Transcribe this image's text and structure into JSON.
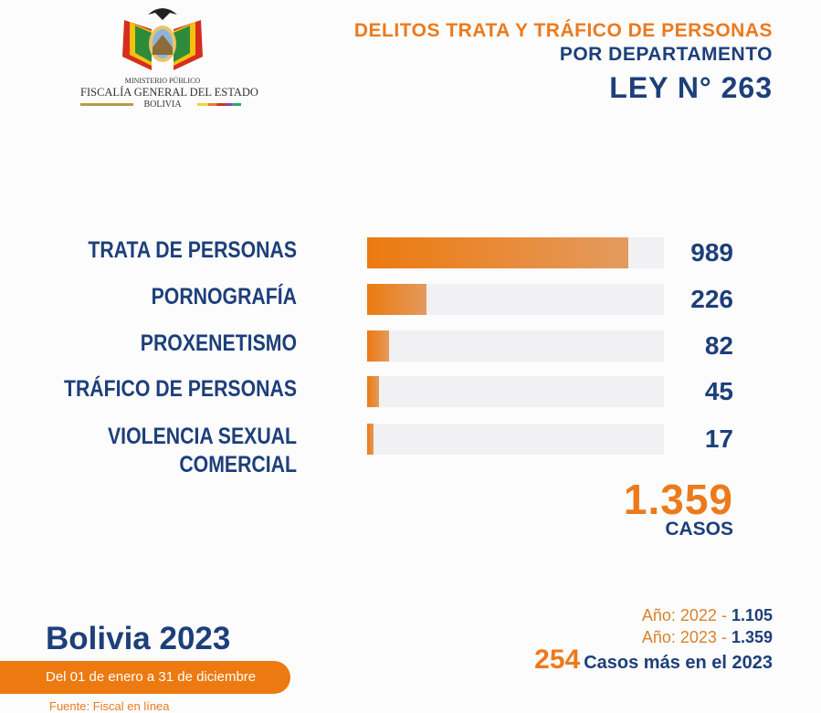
{
  "logo": {
    "line1": "MINISTERIO PÚBLICO",
    "line2": "FISCALÍA GENERAL DEL ESTADO",
    "line3": "BOLIVIA"
  },
  "header": {
    "title1": "DELITOS TRATA Y TRÁFICO DE PERSONAS",
    "title2": "POR DEPARTAMENTO",
    "title3": "LEY N° 263"
  },
  "chart_data": {
    "type": "bar",
    "orientation": "horizontal",
    "categories": [
      "TRATA DE PERSONAS",
      "PORNOGRAFÍA",
      "PROXENETISMO",
      "TRÁFICO DE PERSONAS",
      "VIOLENCIA SEXUAL COMERCIAL"
    ],
    "values": [
      989,
      226,
      82,
      45,
      17
    ],
    "labels": [
      "989",
      "226",
      "82",
      "45",
      "17"
    ],
    "xlim": [
      0,
      1125
    ],
    "colors": {
      "bar": "#ec7a10",
      "track": "#f1f1f3"
    }
  },
  "total": {
    "value": "1.359",
    "label": "CASOS"
  },
  "footer": {
    "title": "Bolivia 2023",
    "period": "Del 01 de enero a 31 de diciembre",
    "source": "Fuente: Fiscal en línea"
  },
  "comparison": {
    "y2022_label": "Año: 2022 - ",
    "y2022_value": "1.105",
    "y2023_label": "Año: 2023 - ",
    "y2023_value": "1.359",
    "diff": "254",
    "diff_label": "Casos más en el 2023"
  }
}
